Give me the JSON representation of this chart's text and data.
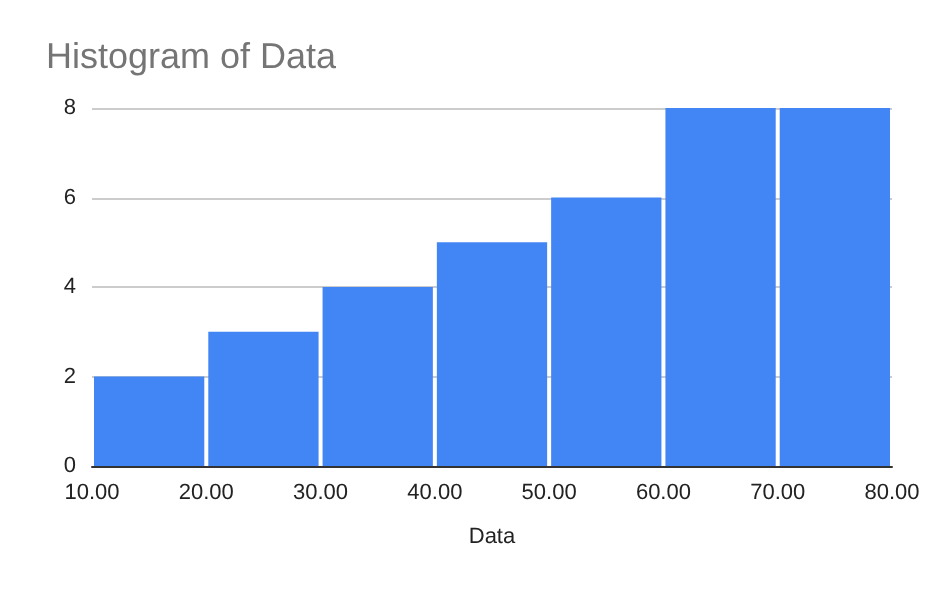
{
  "chart_data": {
    "type": "histogram",
    "title": "Histogram of Data",
    "xlabel": "Data",
    "bins": [
      10,
      20,
      30,
      40,
      50,
      60,
      70,
      80
    ],
    "values": [
      2,
      3,
      4,
      5,
      6,
      8,
      8
    ],
    "color": "#4285f4",
    "xlim": [
      10,
      80
    ],
    "xticks": [
      {
        "value": 10,
        "label": "10.00"
      },
      {
        "value": 20,
        "label": "20.00"
      },
      {
        "value": 30,
        "label": "30.00"
      },
      {
        "value": 40,
        "label": "40.00"
      },
      {
        "value": 50,
        "label": "50.00"
      },
      {
        "value": 60,
        "label": "60.00"
      },
      {
        "value": 70,
        "label": "70.00"
      },
      {
        "value": 80,
        "label": "80.00"
      }
    ],
    "ylim": [
      0,
      8
    ],
    "yticks": [
      0,
      2,
      4,
      6,
      8
    ],
    "grid": "y"
  }
}
